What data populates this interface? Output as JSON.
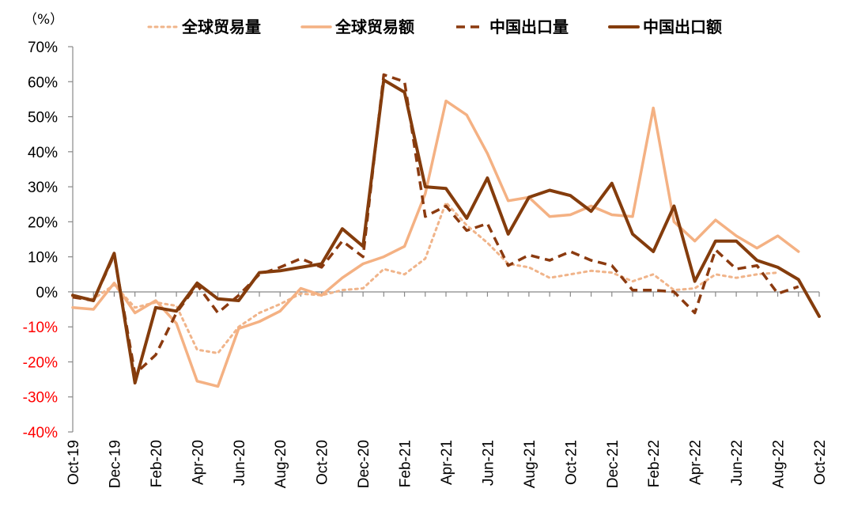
{
  "chart_data": {
    "type": "line",
    "unit_label": "（%）",
    "ylim": [
      -40,
      70
    ],
    "yticks": [
      -40,
      -30,
      -20,
      -10,
      0,
      10,
      20,
      30,
      40,
      50,
      60,
      70
    ],
    "ytick_labels": [
      "-40%",
      "-30%",
      "-20%",
      "-10%",
      "0%",
      "10%",
      "20%",
      "30%",
      "40%",
      "50%",
      "60%",
      "70%"
    ],
    "negative_tick_color": "#ff0000",
    "legend_position": "top",
    "x": [
      "Oct-19",
      "Nov-19",
      "Dec-19",
      "Jan-20",
      "Feb-20",
      "Mar-20",
      "Apr-20",
      "May-20",
      "Jun-20",
      "Jul-20",
      "Aug-20",
      "Sep-20",
      "Oct-20",
      "Nov-20",
      "Dec-20",
      "Jan-21",
      "Feb-21",
      "Mar-21",
      "Apr-21",
      "May-21",
      "Jun-21",
      "Jul-21",
      "Aug-21",
      "Sep-21",
      "Oct-21",
      "Nov-21",
      "Dec-21",
      "Jan-22",
      "Feb-22",
      "Mar-22",
      "Apr-22",
      "May-22",
      "Jun-22",
      "Jul-22",
      "Aug-22",
      "Sep-22",
      "Oct-22"
    ],
    "xtick_labels": [
      "Oct-19",
      "Dec-19",
      "Feb-20",
      "Apr-20",
      "Jun-20",
      "Aug-20",
      "Oct-20",
      "Dec-20",
      "Feb-21",
      "Apr-21",
      "Jun-21",
      "Aug-21",
      "Oct-21",
      "Dec-21",
      "Feb-22",
      "Apr-22",
      "Jun-22",
      "Aug-22",
      "Oct-22"
    ],
    "series": [
      {
        "name": "全球贸易量",
        "color": "#f0b48a",
        "dash": "dotted",
        "values": [
          -1.5,
          -2.0,
          2.0,
          -4.5,
          -3.0,
          -4.0,
          -16.5,
          -17.5,
          -10.0,
          -6.0,
          -3.5,
          -0.5,
          -1.0,
          0.5,
          1.0,
          6.5,
          5.0,
          9.5,
          25.5,
          19.0,
          14.0,
          8.0,
          7.0,
          4.0,
          5.0,
          6.0,
          5.5,
          3.0,
          5.0,
          0.5,
          1.0,
          5.0,
          4.0,
          5.0,
          5.5,
          null,
          null
        ]
      },
      {
        "name": "全球贸易额",
        "color": "#f4b183",
        "dash": "solid",
        "values": [
          -4.5,
          -5.0,
          2.5,
          -6.0,
          -2.5,
          -9.0,
          -25.5,
          -27.0,
          -10.5,
          -8.5,
          -5.5,
          1.0,
          -1.0,
          4.0,
          8.0,
          10.0,
          13.0,
          28.0,
          54.5,
          50.5,
          39.5,
          26.0,
          27.0,
          21.5,
          22.0,
          24.5,
          22.0,
          21.5,
          52.5,
          20.0,
          14.5,
          20.5,
          16.0,
          12.5,
          16.0,
          11.5,
          null
        ]
      },
      {
        "name": "中国出口量",
        "color": "#8b3a0f",
        "dash": "dashed",
        "values": [
          -1.5,
          -2.5,
          10.5,
          -23.5,
          -18.0,
          -6.0,
          2.0,
          -6.0,
          -1.0,
          5.0,
          7.0,
          9.5,
          7.0,
          14.5,
          10.0,
          62.0,
          60.0,
          21.5,
          24.5,
          17.5,
          19.5,
          7.5,
          10.5,
          9.0,
          11.5,
          9.0,
          7.5,
          0.5,
          0.5,
          0.0,
          -6.0,
          12.0,
          6.5,
          7.5,
          -0.5,
          1.5,
          null
        ]
      },
      {
        "name": "中国出口额",
        "color": "#843c0c",
        "dash": "solid",
        "values": [
          -1.0,
          -2.5,
          11.0,
          -26.0,
          -4.5,
          -5.5,
          2.5,
          -2.0,
          -2.5,
          5.5,
          6.0,
          7.0,
          8.0,
          18.0,
          13.0,
          60.5,
          57.0,
          30.0,
          29.5,
          21.0,
          32.5,
          16.5,
          27.0,
          29.0,
          27.5,
          23.0,
          31.0,
          16.5,
          11.5,
          24.5,
          3.0,
          14.5,
          14.5,
          9.0,
          7.0,
          3.5,
          -7.0
        ]
      }
    ]
  }
}
